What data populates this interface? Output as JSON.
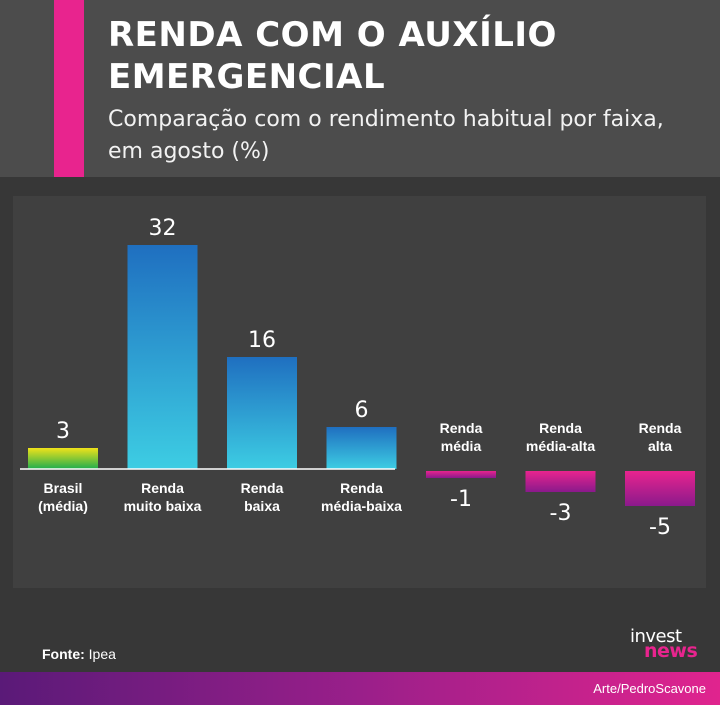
{
  "header": {
    "title": "RENDA COM O AUXÍLIO EMERGENCIAL",
    "subtitle": "Comparação com o rendimento habitual por faixa, em agosto (%)",
    "accent_color": "#e8248e"
  },
  "chart_data": {
    "type": "bar",
    "title": "RENDA COM O AUXÍLIO EMERGENCIAL",
    "subtitle": "Comparação com o rendimento habitual por faixa, em agosto (%)",
    "categories": [
      "Brasil (média)",
      "Renda muito baixa",
      "Renda baixa",
      "Renda média-baixa",
      "Renda média",
      "Renda média-alta",
      "Renda alta"
    ],
    "category_lines": [
      [
        "Brasil",
        "(média)"
      ],
      [
        "Renda",
        "muito baixa"
      ],
      [
        "Renda",
        "baixa"
      ],
      [
        "Renda",
        "média-baixa"
      ],
      [
        "Renda",
        "média"
      ],
      [
        "Renda",
        "média-alta"
      ],
      [
        "Renda",
        "alta"
      ]
    ],
    "values": [
      3,
      32,
      16,
      6,
      -1,
      -3,
      -5
    ],
    "value_labels": [
      "3",
      "32",
      "16",
      "6",
      "-1",
      "-3",
      "-5"
    ],
    "bar_colors": {
      "average": [
        "#f0e21a",
        "#1fad4f"
      ],
      "positive": [
        "#1f6fc0",
        "#3dcde3"
      ],
      "negative": [
        "#e8248e",
        "#8a1a8c"
      ]
    },
    "ylim": [
      -5,
      32
    ],
    "grid": false,
    "xlabel": "",
    "ylabel": ""
  },
  "footer": {
    "source_label": "Fonte:",
    "source_value": "Ipea",
    "credit": "Arte/PedroScavone",
    "logo_top": "invest",
    "logo_bottom": "news"
  }
}
